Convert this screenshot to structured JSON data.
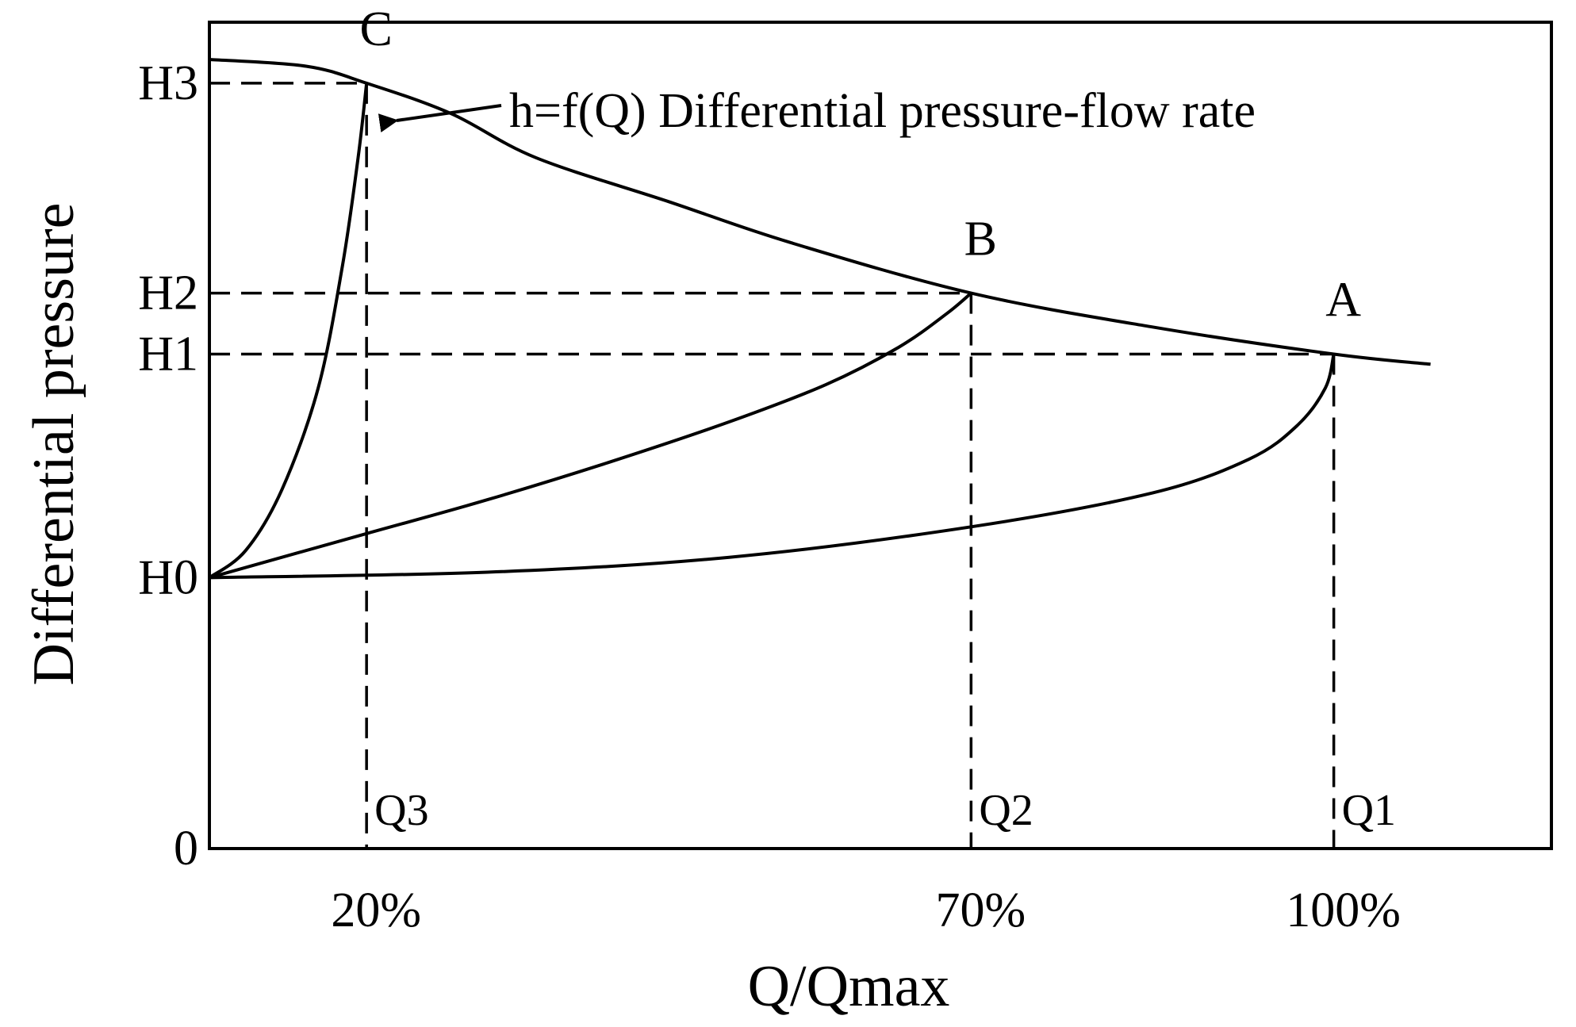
{
  "chart_data": {
    "type": "line",
    "title": "",
    "xlabel": "Q/Qmax",
    "ylabel": "Differential pressure",
    "x_tick_labels": [
      "20%",
      "70%",
      "100%"
    ],
    "y_tick_labels": [
      "0",
      "H0",
      "H1",
      "H2",
      "H3"
    ],
    "xlim_percent": [
      7,
      118
    ],
    "ylim_relative": [
      0,
      1.22
    ],
    "key_flow_levels": [
      {
        "name": "Q3",
        "percent": 20
      },
      {
        "name": "Q2",
        "percent": 70
      },
      {
        "name": "Q1",
        "percent": 100
      }
    ],
    "pressure_levels": [
      {
        "name": "H0",
        "relative": 0.4
      },
      {
        "name": "H1",
        "relative": 0.73
      },
      {
        "name": "H2",
        "relative": 0.82
      },
      {
        "name": "H3",
        "relative": 1.13
      }
    ],
    "points": [
      {
        "name": "A",
        "label": "A",
        "q_percent": 100,
        "level": "H1"
      },
      {
        "name": "B",
        "label": "B",
        "q_percent": 70,
        "level": "H2"
      },
      {
        "name": "C",
        "label": "C",
        "q_percent": 20,
        "level": "H3"
      }
    ],
    "q_labels": [
      {
        "name": "Q3",
        "label": "Q3",
        "q_percent": 20
      },
      {
        "name": "Q2",
        "label": "Q2",
        "q_percent": 70
      },
      {
        "name": "Q1",
        "label": "Q1",
        "q_percent": 100
      }
    ],
    "series": [
      {
        "name": "h=f(Q) Differential pressure-flow rate",
        "type": "system-curve",
        "x": [
          7,
          15,
          20,
          27,
          34,
          45,
          55,
          70,
          85,
          100,
          108
        ],
        "y": [
          1.165,
          1.155,
          1.13,
          1.085,
          1.02,
          0.955,
          0.895,
          0.82,
          0.77,
          0.73,
          0.715
        ]
      },
      {
        "name": "Valve curve to C",
        "x": [
          7,
          10,
          13,
          16,
          18,
          19.3,
          20
        ],
        "y": [
          0.4,
          0.44,
          0.53,
          0.68,
          0.86,
          1.02,
          1.13
        ]
      },
      {
        "name": "Valve curve to B",
        "x": [
          7,
          20,
          30,
          40,
          50,
          58,
          64,
          68,
          70
        ],
        "y": [
          0.4,
          0.465,
          0.515,
          0.57,
          0.63,
          0.685,
          0.74,
          0.79,
          0.82
        ]
      },
      {
        "name": "Valve curve to A",
        "x": [
          7,
          30,
          50,
          70,
          85,
          93,
          97,
          99.3,
          100
        ],
        "y": [
          0.4,
          0.408,
          0.43,
          0.475,
          0.525,
          0.575,
          0.625,
          0.68,
          0.73
        ]
      }
    ],
    "annotation": {
      "text": "h=f(Q) Differential pressure-flow rate",
      "points_to": "C"
    },
    "grid": false,
    "legend": "none"
  }
}
